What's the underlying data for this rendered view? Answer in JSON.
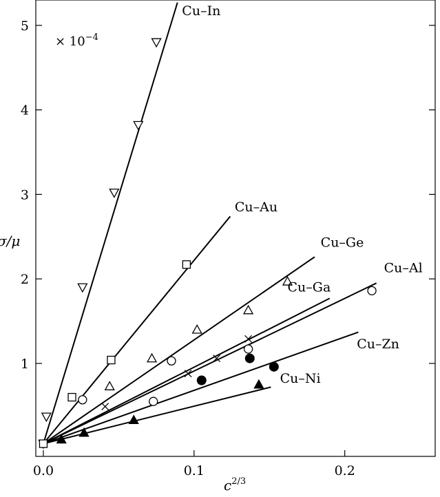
{
  "chart_data": {
    "type": "scatter",
    "xlabel": "c",
    "xlabel_superscript": "2/3",
    "ylabel": "σ/μ",
    "y_multiplier": {
      "text": "× 10",
      "exponent": "−4"
    },
    "xlim": [
      -0.005,
      0.26
    ],
    "ylim": [
      -0.1,
      5.3
    ],
    "x_ticks": [
      {
        "value": 0.0,
        "label": "0.0"
      },
      {
        "value": 0.1,
        "label": "0.1"
      },
      {
        "value": 0.2,
        "label": "0.2"
      }
    ],
    "y_ticks": [
      {
        "value": 1,
        "label": "1"
      },
      {
        "value": 2,
        "label": "2"
      },
      {
        "value": 3,
        "label": "3"
      },
      {
        "value": 4,
        "label": "4"
      },
      {
        "value": 5,
        "label": "5"
      }
    ],
    "grid": false,
    "series": [
      {
        "name": "Cu–In",
        "marker": "triangle-down-open",
        "points": [
          [
            0.0,
            0.05
          ],
          [
            0.002,
            0.37
          ],
          [
            0.026,
            1.9
          ],
          [
            0.047,
            3.02
          ],
          [
            0.063,
            3.82
          ],
          [
            0.075,
            4.8
          ]
        ],
        "fit": [
          [
            0.0,
            0.05
          ],
          [
            0.089,
            5.27
          ]
        ],
        "label_at": [
          0.092,
          5.12
        ]
      },
      {
        "name": "Cu–Au",
        "marker": "square-open",
        "points": [
          [
            0.0,
            0.05
          ],
          [
            0.019,
            0.6
          ],
          [
            0.045,
            1.04
          ],
          [
            0.095,
            2.17
          ]
        ],
        "fit": [
          [
            0.0,
            0.05
          ],
          [
            0.124,
            2.74
          ]
        ],
        "label_at": [
          0.127,
          2.8
        ]
      },
      {
        "name": "Cu–Ge",
        "marker": "triangle-up-open",
        "points": [
          [
            0.044,
            0.73
          ],
          [
            0.072,
            1.06
          ],
          [
            0.102,
            1.4
          ],
          [
            0.136,
            1.63
          ],
          [
            0.162,
            1.97
          ]
        ],
        "fit": [
          [
            0.0,
            0.05
          ],
          [
            0.18,
            2.26
          ]
        ],
        "label_at": [
          0.184,
          2.38
        ]
      },
      {
        "name": "Cu–Ga",
        "marker": "cross",
        "points": [
          [
            0.041,
            0.49
          ],
          [
            0.096,
            0.88
          ],
          [
            0.115,
            1.06
          ],
          [
            0.136,
            1.29
          ]
        ],
        "fit": [
          [
            0.0,
            0.05
          ],
          [
            0.19,
            1.77
          ]
        ],
        "label_at": [
          0.162,
          1.85
        ]
      },
      {
        "name": "Cu–Al",
        "marker": "circle-open",
        "points": [
          [
            0.026,
            0.57
          ],
          [
            0.073,
            0.55
          ],
          [
            0.085,
            1.03
          ],
          [
            0.136,
            1.17
          ],
          [
            0.218,
            1.86
          ]
        ],
        "fit": [
          [
            0.0,
            0.05
          ],
          [
            0.221,
            1.95
          ]
        ],
        "label_at": [
          0.226,
          2.08
        ]
      },
      {
        "name": "Cu–Zn",
        "marker": "circle-filled",
        "points": [
          [
            0.105,
            0.8
          ],
          [
            0.137,
            1.06
          ],
          [
            0.153,
            0.96
          ]
        ],
        "fit": [
          [
            0.0,
            0.05
          ],
          [
            0.209,
            1.37
          ]
        ],
        "label_at": [
          0.208,
          1.18
        ]
      },
      {
        "name": "Cu–Ni",
        "marker": "triangle-up-filled",
        "points": [
          [
            0.012,
            0.1
          ],
          [
            0.027,
            0.18
          ],
          [
            0.06,
            0.33
          ],
          [
            0.143,
            0.75
          ]
        ],
        "fit": [
          [
            0.0,
            0.05
          ],
          [
            0.151,
            0.72
          ]
        ],
        "label_at": [
          0.157,
          0.77
        ]
      }
    ]
  }
}
